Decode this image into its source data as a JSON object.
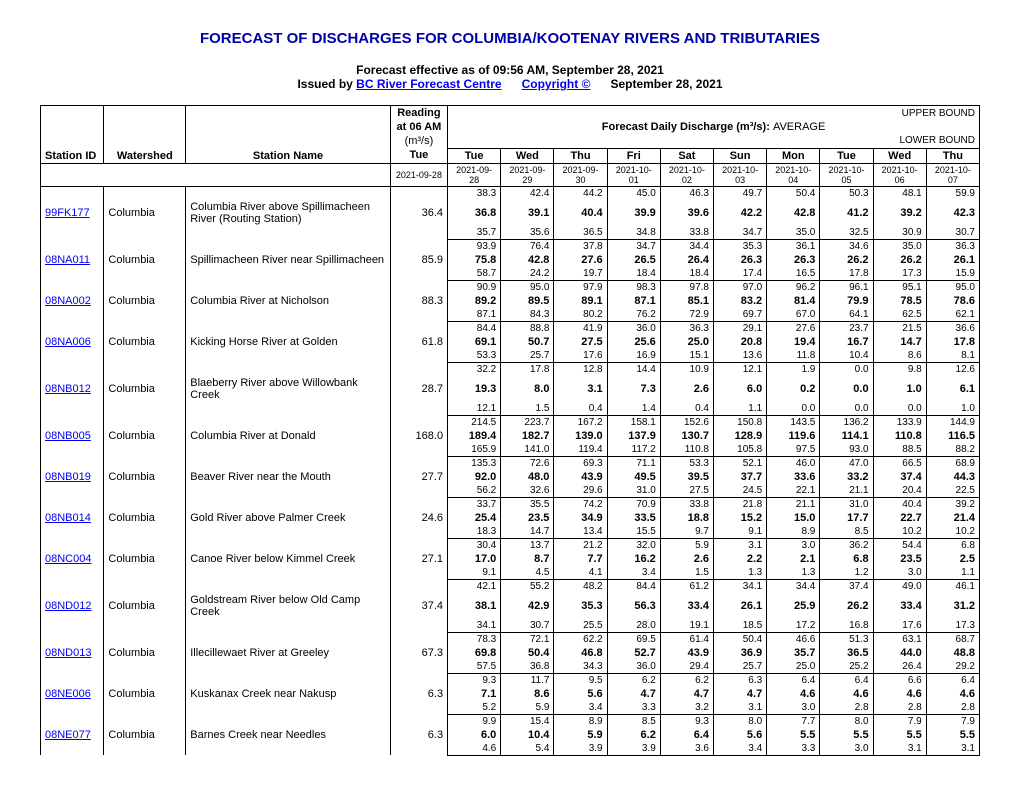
{
  "title": "FORECAST OF DISCHARGES FOR COLUMBIA/KOOTENAY RIVERS AND TRIBUTARIES",
  "effective_line": "Forecast effective as of 09:56 AM, September 28, 2021",
  "issued_by_prefix": "Issued by",
  "issued_by_link": "BC River Forecast Centre",
  "copyright_link": "Copyright ©",
  "issued_date": "September 28, 2021",
  "header": {
    "reading_label_l1": "Reading",
    "reading_label_l2": "at 06 AM",
    "unit_html": "(m³/s)",
    "forecast_label": "Forecast Daily Discharge (m³/s):",
    "upper": "UPPER BOUND",
    "average": "AVERAGE",
    "lower": "LOWER BOUND",
    "station_id": "Station ID",
    "watershed": "Watershed",
    "station_name": "Station Name",
    "reading_day": "Tue",
    "days": [
      "Tue",
      "Wed",
      "Thu",
      "Fri",
      "Sat",
      "Sun",
      "Mon",
      "Tue",
      "Wed",
      "Thu"
    ],
    "reading_date": "2021-09-28",
    "dates": [
      "2021-09-28",
      "2021-09-29",
      "2021-09-30",
      "2021-10-01",
      "2021-10-02",
      "2021-10-03",
      "2021-10-04",
      "2021-10-05",
      "2021-10-06",
      "2021-10-07"
    ]
  },
  "rows": [
    {
      "id": "99FK177",
      "ws": "Columbia",
      "name": "Columbia River above Spillimacheen River (Routing Station)",
      "reading": "36.4",
      "upper": [
        "38.3",
        "42.4",
        "44.2",
        "45.0",
        "46.3",
        "49.7",
        "50.4",
        "50.3",
        "48.1",
        "59.9"
      ],
      "avg": [
        "36.8",
        "39.1",
        "40.4",
        "39.9",
        "39.6",
        "42.2",
        "42.8",
        "41.2",
        "39.2",
        "42.3"
      ],
      "lower": [
        "35.7",
        "35.6",
        "36.5",
        "34.8",
        "33.8",
        "34.7",
        "35.0",
        "32.5",
        "30.9",
        "30.7"
      ]
    },
    {
      "id": "08NA011",
      "ws": "Columbia",
      "name": "Spillimacheen River near Spillimacheen",
      "reading": "85.9",
      "upper": [
        "93.9",
        "76.4",
        "37.8",
        "34.7",
        "34.4",
        "35.3",
        "36.1",
        "34.6",
        "35.0",
        "36.3"
      ],
      "avg": [
        "75.8",
        "42.8",
        "27.6",
        "26.5",
        "26.4",
        "26.3",
        "26.3",
        "26.2",
        "26.2",
        "26.1"
      ],
      "lower": [
        "58.7",
        "24.2",
        "19.7",
        "18.4",
        "18.4",
        "17.4",
        "16.5",
        "17.8",
        "17.3",
        "15.9"
      ]
    },
    {
      "id": "08NA002",
      "ws": "Columbia",
      "name": "Columbia River at Nicholson",
      "reading": "88.3",
      "upper": [
        "90.9",
        "95.0",
        "97.9",
        "98.3",
        "97.8",
        "97.0",
        "96.2",
        "96.1",
        "95.1",
        "95.0"
      ],
      "avg": [
        "89.2",
        "89.5",
        "89.1",
        "87.1",
        "85.1",
        "83.2",
        "81.4",
        "79.9",
        "78.5",
        "78.6"
      ],
      "lower": [
        "87.1",
        "84.3",
        "80.2",
        "76.2",
        "72.9",
        "69.7",
        "67.0",
        "64.1",
        "62.5",
        "62.1"
      ]
    },
    {
      "id": "08NA006",
      "ws": "Columbia",
      "name": "Kicking Horse River at Golden",
      "reading": "61.8",
      "upper": [
        "84.4",
        "88.8",
        "41.9",
        "36.0",
        "36.3",
        "29.1",
        "27.6",
        "23.7",
        "21.5",
        "36.6"
      ],
      "avg": [
        "69.1",
        "50.7",
        "27.5",
        "25.6",
        "25.0",
        "20.8",
        "19.4",
        "16.7",
        "14.7",
        "17.8"
      ],
      "lower": [
        "53.3",
        "25.7",
        "17.6",
        "16.9",
        "15.1",
        "13.6",
        "11.8",
        "10.4",
        "8.6",
        "8.1"
      ]
    },
    {
      "id": "08NB012",
      "ws": "Columbia",
      "name": "Blaeberry River above Willowbank Creek",
      "reading": "28.7",
      "upper": [
        "32.2",
        "17.8",
        "12.8",
        "14.4",
        "10.9",
        "12.1",
        "1.9",
        "0.0",
        "9.8",
        "12.6"
      ],
      "avg": [
        "19.3",
        "8.0",
        "3.1",
        "7.3",
        "2.6",
        "6.0",
        "0.2",
        "0.0",
        "1.0",
        "6.1"
      ],
      "lower": [
        "12.1",
        "1.5",
        "0.4",
        "1.4",
        "0.4",
        "1.1",
        "0.0",
        "0.0",
        "0.0",
        "1.0"
      ]
    },
    {
      "id": "08NB005",
      "ws": "Columbia",
      "name": "Columbia River at Donald",
      "reading": "168.0",
      "upper": [
        "214.5",
        "223.7",
        "167.2",
        "158.1",
        "152.6",
        "150.8",
        "143.5",
        "136.2",
        "133.9",
        "144.9"
      ],
      "avg": [
        "189.4",
        "182.7",
        "139.0",
        "137.9",
        "130.7",
        "128.9",
        "119.6",
        "114.1",
        "110.8",
        "116.5"
      ],
      "lower": [
        "165.9",
        "141.0",
        "119.4",
        "117.2",
        "110.8",
        "105.8",
        "97.5",
        "93.0",
        "88.5",
        "88.2"
      ]
    },
    {
      "id": "08NB019",
      "ws": "Columbia",
      "name": "Beaver River near the Mouth",
      "reading": "27.7",
      "upper": [
        "135.3",
        "72.6",
        "69.3",
        "71.1",
        "53.3",
        "52.1",
        "46.0",
        "47.0",
        "66.5",
        "68.9"
      ],
      "avg": [
        "92.0",
        "48.0",
        "43.9",
        "49.5",
        "39.5",
        "37.7",
        "33.6",
        "33.2",
        "37.4",
        "44.3"
      ],
      "lower": [
        "56.2",
        "32.6",
        "29.6",
        "31.0",
        "27.5",
        "24.5",
        "22.1",
        "21.1",
        "20.4",
        "22.5"
      ]
    },
    {
      "id": "08NB014",
      "ws": "Columbia",
      "name": "Gold River above Palmer Creek",
      "reading": "24.6",
      "upper": [
        "33.7",
        "35.5",
        "74.2",
        "70.9",
        "33.8",
        "21.8",
        "21.1",
        "31.0",
        "40.4",
        "39.2"
      ],
      "avg": [
        "25.4",
        "23.5",
        "34.9",
        "33.5",
        "18.8",
        "15.2",
        "15.0",
        "17.7",
        "22.7",
        "21.4"
      ],
      "lower": [
        "18.3",
        "14.7",
        "13.4",
        "15.5",
        "9.7",
        "9.1",
        "8.9",
        "8.5",
        "10.2",
        "10.2"
      ]
    },
    {
      "id": "08NC004",
      "ws": "Columbia",
      "name": "Canoe River below Kimmel Creek",
      "reading": "27.1",
      "upper": [
        "30.4",
        "13.7",
        "21.2",
        "32.0",
        "5.9",
        "3.1",
        "3.0",
        "36.2",
        "54.4",
        "6.8"
      ],
      "avg": [
        "17.0",
        "8.7",
        "7.7",
        "16.2",
        "2.6",
        "2.2",
        "2.1",
        "6.8",
        "23.5",
        "2.5"
      ],
      "lower": [
        "9.1",
        "4.5",
        "4.1",
        "3.4",
        "1.5",
        "1.3",
        "1.3",
        "1.2",
        "3.0",
        "1.1"
      ]
    },
    {
      "id": "08ND012",
      "ws": "Columbia",
      "name": "Goldstream River below Old Camp Creek",
      "reading": "37.4",
      "upper": [
        "42.1",
        "55.2",
        "48.2",
        "84.4",
        "61.2",
        "34.1",
        "34.4",
        "37.4",
        "49.0",
        "46.1"
      ],
      "avg": [
        "38.1",
        "42.9",
        "35.3",
        "56.3",
        "33.4",
        "26.1",
        "25.9",
        "26.2",
        "33.4",
        "31.2"
      ],
      "lower": [
        "34.1",
        "30.7",
        "25.5",
        "28.0",
        "19.1",
        "18.5",
        "17.2",
        "16.8",
        "17.6",
        "17.3"
      ]
    },
    {
      "id": "08ND013",
      "ws": "Columbia",
      "name": "Illecillewaet River at Greeley",
      "reading": "67.3",
      "upper": [
        "78.3",
        "72.1",
        "62.2",
        "69.5",
        "61.4",
        "50.4",
        "46.6",
        "51.3",
        "63.1",
        "68.7"
      ],
      "avg": [
        "69.8",
        "50.4",
        "46.8",
        "52.7",
        "43.9",
        "36.9",
        "35.7",
        "36.5",
        "44.0",
        "48.8"
      ],
      "lower": [
        "57.5",
        "36.8",
        "34.3",
        "36.0",
        "29.4",
        "25.7",
        "25.0",
        "25.2",
        "26.4",
        "29.2"
      ]
    },
    {
      "id": "08NE006",
      "ws": "Columbia",
      "name": "Kuskanax Creek near Nakusp",
      "reading": "6.3",
      "upper": [
        "9.3",
        "11.7",
        "9.5",
        "6.2",
        "6.2",
        "6.3",
        "6.4",
        "6.4",
        "6.6",
        "6.4"
      ],
      "avg": [
        "7.1",
        "8.6",
        "5.6",
        "4.7",
        "4.7",
        "4.7",
        "4.6",
        "4.6",
        "4.6",
        "4.6"
      ],
      "lower": [
        "5.2",
        "5.9",
        "3.4",
        "3.3",
        "3.2",
        "3.1",
        "3.0",
        "2.8",
        "2.8",
        "2.8"
      ]
    },
    {
      "id": "08NE077",
      "ws": "Columbia",
      "name": "Barnes Creek near Needles",
      "reading": "6.3",
      "upper": [
        "9.9",
        "15.4",
        "8.9",
        "8.5",
        "9.3",
        "8.0",
        "7.7",
        "8.0",
        "7.9",
        "7.9"
      ],
      "avg": [
        "6.0",
        "10.4",
        "5.9",
        "6.2",
        "6.4",
        "5.6",
        "5.5",
        "5.5",
        "5.5",
        "5.5"
      ],
      "lower": [
        "4.6",
        "5.4",
        "3.9",
        "3.9",
        "3.6",
        "3.4",
        "3.3",
        "3.0",
        "3.1",
        "3.1"
      ]
    }
  ]
}
